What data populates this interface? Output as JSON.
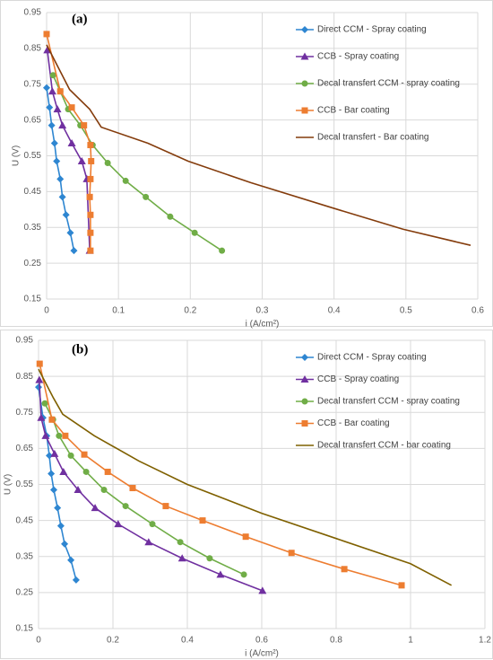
{
  "chart_data": [
    {
      "type": "line",
      "title": "(a)",
      "x_label": "i (A/cm²)",
      "y_label": "U (V)",
      "xlim": [
        0,
        0.6
      ],
      "xticks": [
        0,
        0.1,
        0.2,
        0.3,
        0.4,
        0.5,
        0.6
      ],
      "ylim": [
        0.15,
        0.95
      ],
      "yticks": [
        0.15,
        0.25,
        0.35,
        0.45,
        0.55,
        0.65,
        0.75,
        0.85,
        0.95
      ],
      "grid": true,
      "series": [
        {
          "name": "Direct CCM - Spray coating",
          "color": "#2e86d1",
          "marker": "diamond",
          "x": [
            0,
            0.004,
            0.007,
            0.011,
            0.014,
            0.019,
            0.022,
            0.027,
            0.033,
            0.038
          ],
          "values": [
            0.74,
            0.685,
            0.635,
            0.585,
            0.535,
            0.485,
            0.435,
            0.385,
            0.335,
            0.285
          ]
        },
        {
          "name": "CCB - Spray coating",
          "color": "#7030a0",
          "marker": "triangle",
          "x": [
            0.001,
            0.008,
            0.015,
            0.022,
            0.035,
            0.049,
            0.056,
            0.06
          ],
          "values": [
            0.845,
            0.73,
            0.68,
            0.635,
            0.585,
            0.535,
            0.485,
            0.285
          ]
        },
        {
          "name": "Decal transfert CCM - spray coating",
          "color": "#70ad47",
          "marker": "circle",
          "x": [
            0.009,
            0.019,
            0.03,
            0.047,
            0.064,
            0.085,
            0.11,
            0.138,
            0.172,
            0.206,
            0.244
          ],
          "values": [
            0.775,
            0.73,
            0.68,
            0.635,
            0.58,
            0.53,
            0.48,
            0.435,
            0.38,
            0.335,
            0.285
          ]
        },
        {
          "name": "CCB - Bar coating",
          "color": "#ed7d31",
          "marker": "square",
          "x": [
            0,
            0.019,
            0.035,
            0.052,
            0.061,
            0.062,
            0.061,
            0.06,
            0.061,
            0.061,
            0.061
          ],
          "values": [
            0.89,
            0.73,
            0.685,
            0.635,
            0.58,
            0.535,
            0.485,
            0.435,
            0.385,
            0.335,
            0.285
          ]
        },
        {
          "name": "Decal transfert - Bar coating",
          "color": "#843c0c",
          "marker": "none",
          "x": [
            0,
            0.032,
            0.06,
            0.076,
            0.141,
            0.197,
            0.284,
            0.397,
            0.496,
            0.59
          ],
          "values": [
            0.86,
            0.735,
            0.68,
            0.63,
            0.585,
            0.535,
            0.475,
            0.405,
            0.345,
            0.3
          ]
        }
      ]
    },
    {
      "type": "line",
      "title": "(b)",
      "x_label": "i (A/cm²)",
      "y_label": "U (V)",
      "xlim": [
        0,
        1.2
      ],
      "xticks": [
        0,
        0.2,
        0.4,
        0.6,
        0.8,
        1,
        1.2
      ],
      "ylim": [
        0.15,
        0.95
      ],
      "yticks": [
        0.15,
        0.25,
        0.35,
        0.45,
        0.55,
        0.65,
        0.75,
        0.85,
        0.95
      ],
      "grid": true,
      "series": [
        {
          "name": "Direct CCM - Spray coating",
          "color": "#2e86d1",
          "marker": "diamond",
          "x": [
            0,
            0.012,
            0.022,
            0.029,
            0.034,
            0.041,
            0.051,
            0.06,
            0.07,
            0.087,
            0.101
          ],
          "values": [
            0.82,
            0.735,
            0.685,
            0.63,
            0.58,
            0.535,
            0.485,
            0.435,
            0.385,
            0.34,
            0.285
          ]
        },
        {
          "name": "CCB - Spray coating",
          "color": "#7030a0",
          "marker": "triangle",
          "x": [
            0.002,
            0.007,
            0.019,
            0.043,
            0.067,
            0.106,
            0.152,
            0.214,
            0.296,
            0.386,
            0.489,
            0.602
          ],
          "values": [
            0.84,
            0.735,
            0.685,
            0.635,
            0.585,
            0.535,
            0.485,
            0.44,
            0.39,
            0.345,
            0.3,
            0.255
          ]
        },
        {
          "name": "Decal transfert CCM - spray coating",
          "color": "#70ad47",
          "marker": "circle",
          "x": [
            0.017,
            0.039,
            0.055,
            0.087,
            0.128,
            0.176,
            0.234,
            0.306,
            0.381,
            0.46,
            0.552
          ],
          "values": [
            0.775,
            0.73,
            0.685,
            0.63,
            0.585,
            0.535,
            0.49,
            0.44,
            0.39,
            0.345,
            0.3
          ]
        },
        {
          "name": "CCB - Bar coating",
          "color": "#ed7d31",
          "marker": "square",
          "x": [
            0.003,
            0.036,
            0.072,
            0.123,
            0.186,
            0.253,
            0.342,
            0.441,
            0.557,
            0.68,
            0.822,
            0.976
          ],
          "values": [
            0.885,
            0.73,
            0.685,
            0.633,
            0.585,
            0.54,
            0.49,
            0.45,
            0.405,
            0.36,
            0.315,
            0.27
          ]
        },
        {
          "name": "Decal transfert CCM - bar coating",
          "color": "#7f6000",
          "marker": "none",
          "x": [
            0,
            0.04,
            0.065,
            0.15,
            0.27,
            0.4,
            0.6,
            0.8,
            1.0,
            1.11
          ],
          "values": [
            0.87,
            0.79,
            0.745,
            0.685,
            0.615,
            0.55,
            0.47,
            0.4,
            0.33,
            0.27
          ]
        }
      ]
    }
  ]
}
